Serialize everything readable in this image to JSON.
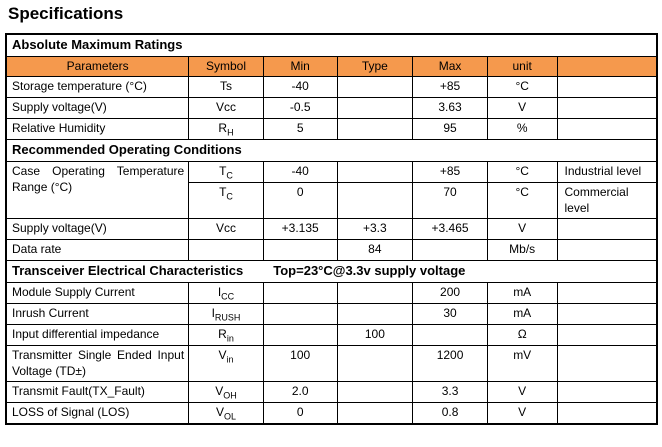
{
  "page_title": "Specifications",
  "colors": {
    "header_bg": "#F5994D",
    "border": "#000000",
    "text": "#000000",
    "page_bg": "#ffffff"
  },
  "table": {
    "rows": [
      {
        "kind": "section",
        "cells": [
          {
            "text": "Absolute Maximum Ratings",
            "span": 7
          }
        ]
      },
      {
        "kind": "colhead",
        "cells": [
          {
            "text": "Parameters"
          },
          {
            "text": "Symbol"
          },
          {
            "text": "Min"
          },
          {
            "text": "Type"
          },
          {
            "text": "Max"
          },
          {
            "text": "unit"
          },
          {
            "text": ""
          }
        ]
      },
      {
        "kind": "data",
        "cells": [
          {
            "text": "Storage temperature (°C)"
          },
          {
            "text": "Ts"
          },
          {
            "text": "-40"
          },
          {
            "text": ""
          },
          {
            "text": "+85"
          },
          {
            "text": "°C"
          },
          {
            "text": ""
          }
        ]
      },
      {
        "kind": "data",
        "cells": [
          {
            "text": "Supply voltage(V)"
          },
          {
            "text": "Vcc"
          },
          {
            "text": "-0.5"
          },
          {
            "text": ""
          },
          {
            "text": "3.63"
          },
          {
            "text": "V"
          },
          {
            "text": ""
          }
        ]
      },
      {
        "kind": "data",
        "cells": [
          {
            "text": "Relative Humidity"
          },
          {
            "text": "R",
            "sub": "H"
          },
          {
            "text": "5"
          },
          {
            "text": ""
          },
          {
            "text": "95"
          },
          {
            "text": "%"
          },
          {
            "text": ""
          }
        ]
      },
      {
        "kind": "section",
        "cells": [
          {
            "text": "Recommended Operating Conditions",
            "span": 7
          }
        ]
      },
      {
        "kind": "data",
        "cells": [
          {
            "text": "Case Operating Temperature Range (°C)",
            "rowspan": 2,
            "justify": true,
            "wrap": true
          },
          {
            "text": "T",
            "sub": "C"
          },
          {
            "text": "-40"
          },
          {
            "text": ""
          },
          {
            "text": "+85"
          },
          {
            "text": "°C"
          },
          {
            "text": "Industrial level"
          }
        ]
      },
      {
        "kind": "data",
        "cells": [
          {
            "text": "T",
            "sub": "C"
          },
          {
            "text": "0"
          },
          {
            "text": ""
          },
          {
            "text": "70"
          },
          {
            "text": "°C"
          },
          {
            "text": "Commercial level",
            "wrap": true
          }
        ]
      },
      {
        "kind": "data",
        "cells": [
          {
            "text": "Supply voltage(V)"
          },
          {
            "text": "Vcc"
          },
          {
            "text": "+3.135"
          },
          {
            "text": "+3.3"
          },
          {
            "text": "+3.465"
          },
          {
            "text": "V"
          },
          {
            "text": ""
          }
        ]
      },
      {
        "kind": "data",
        "cells": [
          {
            "text": "Data rate"
          },
          {
            "text": ""
          },
          {
            "text": ""
          },
          {
            "text": "84"
          },
          {
            "text": ""
          },
          {
            "text": "Mb/s"
          },
          {
            "text": ""
          }
        ]
      },
      {
        "kind": "section",
        "cells": [
          {
            "text": "Transceiver Electrical Characteristics",
            "span": 7,
            "note": "Top=23°C@3.3v supply voltage"
          }
        ]
      },
      {
        "kind": "data",
        "cells": [
          {
            "text": "Module Supply Current"
          },
          {
            "text": "I",
            "sub": "CC"
          },
          {
            "text": ""
          },
          {
            "text": ""
          },
          {
            "text": "200"
          },
          {
            "text": "mA"
          },
          {
            "text": ""
          }
        ]
      },
      {
        "kind": "data",
        "cells": [
          {
            "text": "Inrush Current"
          },
          {
            "text": "I",
            "sub": "RUSH"
          },
          {
            "text": ""
          },
          {
            "text": ""
          },
          {
            "text": "30"
          },
          {
            "text": "mA"
          },
          {
            "text": ""
          }
        ]
      },
      {
        "kind": "data",
        "cells": [
          {
            "text": "Input differential impedance"
          },
          {
            "text": "R",
            "sub": "in"
          },
          {
            "text": ""
          },
          {
            "text": "100"
          },
          {
            "text": ""
          },
          {
            "text": "Ω"
          },
          {
            "text": ""
          }
        ]
      },
      {
        "kind": "data",
        "cells": [
          {
            "text": "Transmitter Single Ended Input Voltage (TD±)",
            "justify": true,
            "wrap": true
          },
          {
            "text": "V",
            "sub": "in"
          },
          {
            "text": "100"
          },
          {
            "text": ""
          },
          {
            "text": "1200"
          },
          {
            "text": "mV"
          },
          {
            "text": ""
          }
        ]
      },
      {
        "kind": "data",
        "cells": [
          {
            "text": "Transmit Fault(TX_Fault)"
          },
          {
            "text": "V",
            "sub": "OH"
          },
          {
            "text": "2.0"
          },
          {
            "text": ""
          },
          {
            "text": "3.3"
          },
          {
            "text": "V"
          },
          {
            "text": ""
          }
        ]
      },
      {
        "kind": "data",
        "cells": [
          {
            "text": "LOSS of Signal (LOS)"
          },
          {
            "text": "V",
            "sub": "OL"
          },
          {
            "text": "0"
          },
          {
            "text": ""
          },
          {
            "text": "0.8"
          },
          {
            "text": "V"
          },
          {
            "text": ""
          }
        ]
      }
    ]
  }
}
